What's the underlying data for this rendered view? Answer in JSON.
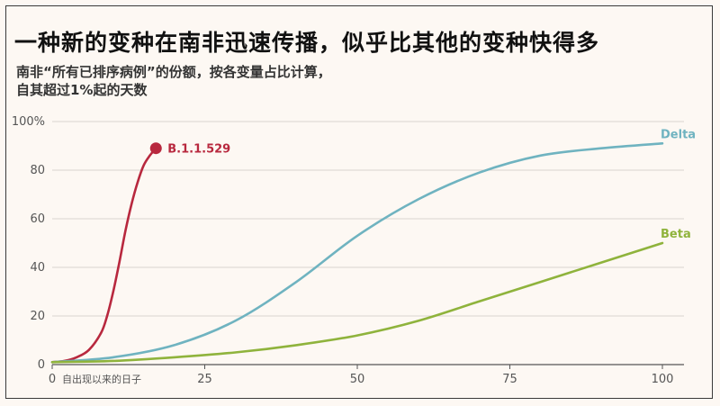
{
  "title": "一种新的变种在南非迅速传播，似乎比其他的变种快得多",
  "subtitle_line1": "南非“所有已排序病例”的份额，按各变量占比计算，",
  "subtitle_line2": "自其超过1%起的天数",
  "colors": {
    "background": "#fdf8f3",
    "grid": "#d9d4cf",
    "axis": "#555555"
  },
  "chart_data": {
    "type": "line",
    "title": "一种新的变种在南非迅速传播，似乎比其他的变种快得多",
    "xlabel": "自出现以来的日子",
    "ylabel": "",
    "xlim": [
      0,
      100
    ],
    "ylim": [
      0,
      100
    ],
    "x_ticks": [
      "0",
      "25",
      "50",
      "75",
      "100"
    ],
    "y_ticks": [
      "0",
      "20",
      "40",
      "60",
      "80",
      "100%"
    ],
    "grid": true,
    "series": [
      {
        "name": "B.1.1.529",
        "color": "#b8283e",
        "endpoint_marker": true,
        "x": [
          0,
          2,
          4,
          6,
          8,
          9,
          10,
          11,
          12,
          13,
          14,
          15,
          16,
          17
        ],
        "y": [
          1,
          1.5,
          3,
          6,
          13,
          20,
          30,
          42,
          55,
          66,
          75,
          82,
          86,
          89
        ]
      },
      {
        "name": "Delta",
        "color": "#6fb3c0",
        "x": [
          0,
          10,
          20,
          30,
          40,
          50,
          60,
          70,
          80,
          90,
          100
        ],
        "y": [
          1,
          3,
          8,
          18,
          34,
          53,
          68,
          79,
          86,
          89,
          91
        ]
      },
      {
        "name": "Beta",
        "color": "#8fb33c",
        "x": [
          0,
          10,
          20,
          30,
          40,
          50,
          60,
          70,
          80,
          90,
          100
        ],
        "y": [
          1,
          1.5,
          3,
          5,
          8,
          12,
          18,
          26,
          34,
          42,
          50
        ]
      }
    ]
  }
}
